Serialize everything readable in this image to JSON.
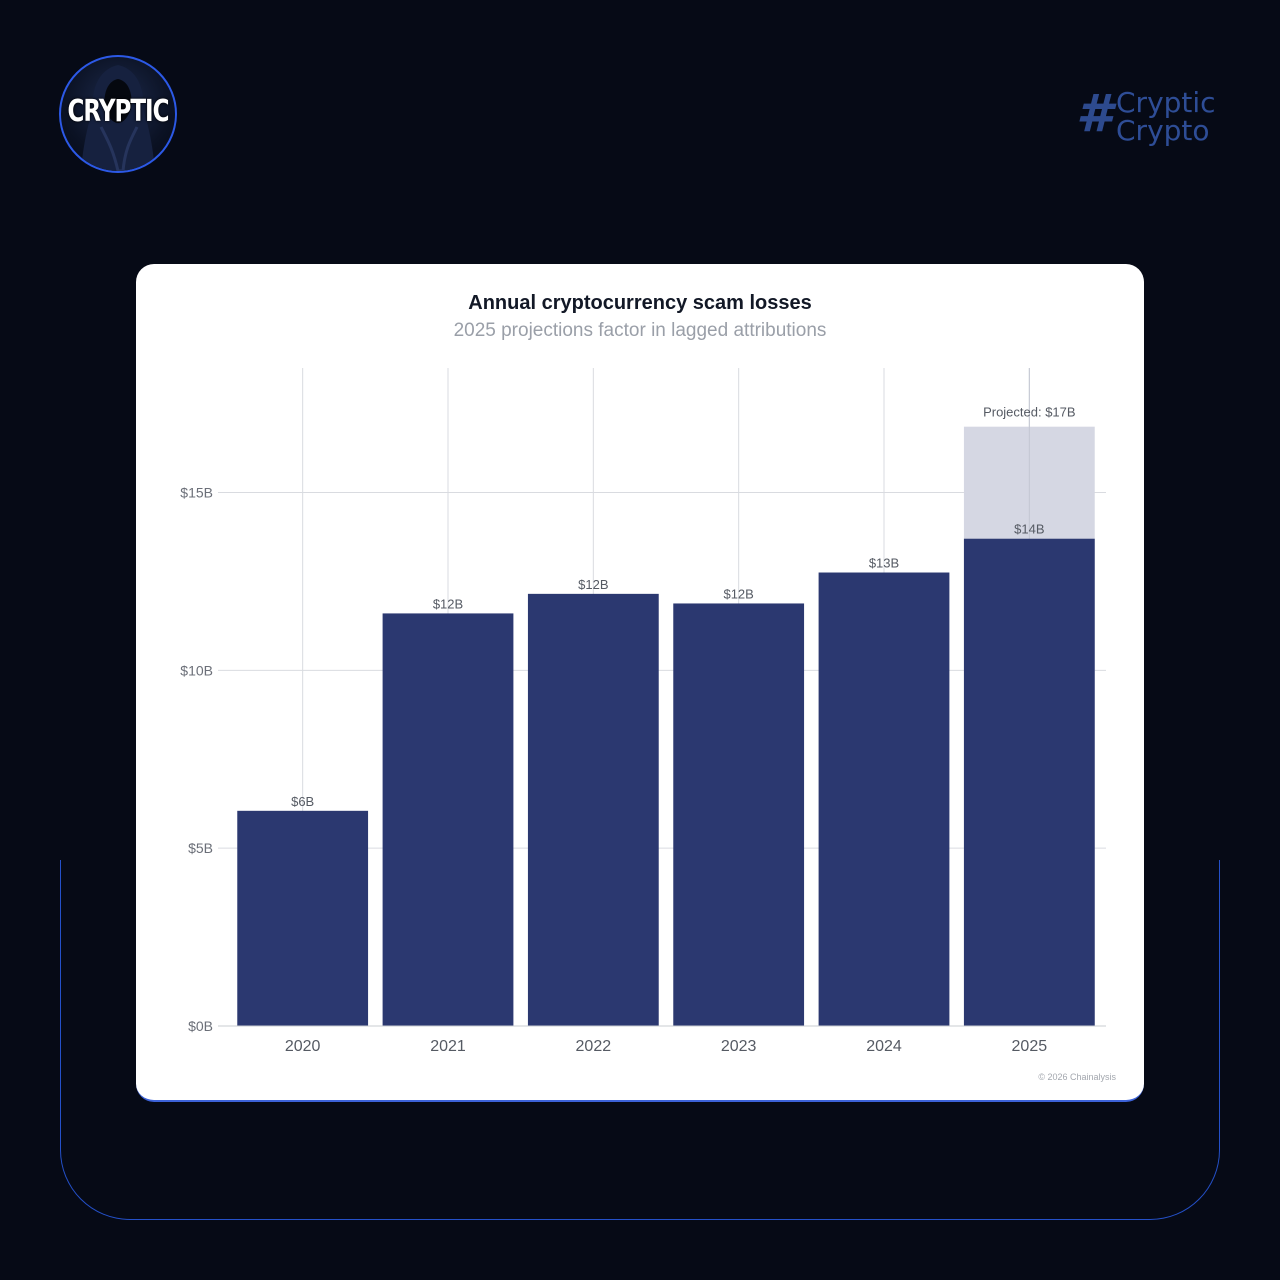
{
  "header": {
    "logo_text": "CRYPTIC",
    "brand_symbol": "#",
    "brand_line1": "Cryptic",
    "brand_line2": "Crypto"
  },
  "colors": {
    "background": "#060a16",
    "accent": "#2c59e6",
    "bar": "#2b3870",
    "projected_bar": "#d5d7e3"
  },
  "chart_data": {
    "type": "bar",
    "title": "Annual cryptocurrency scam losses",
    "subtitle": "2025 projections factor in lagged attributions",
    "xlabel": "",
    "ylabel": "",
    "categories": [
      "2020",
      "2021",
      "2022",
      "2023",
      "2024",
      "2025"
    ],
    "series": [
      {
        "values": [
          6.05,
          11.6,
          12.15,
          11.88,
          12.75,
          13.7
        ],
        "labels": [
          "$6B",
          "$12B",
          "$12B",
          "$12B",
          "$13B",
          "$14B"
        ]
      }
    ],
    "projection": {
      "category": "2025",
      "value": 16.85,
      "label": "Projected: $17B"
    },
    "ylim": [
      0,
      18.5
    ],
    "yticks": [
      0,
      5,
      10,
      15
    ],
    "ytick_labels": [
      "$0B",
      "$5B",
      "$10B",
      "$15B"
    ],
    "grid": true,
    "legend": "none",
    "source": "© 2026 Chainalysis"
  }
}
